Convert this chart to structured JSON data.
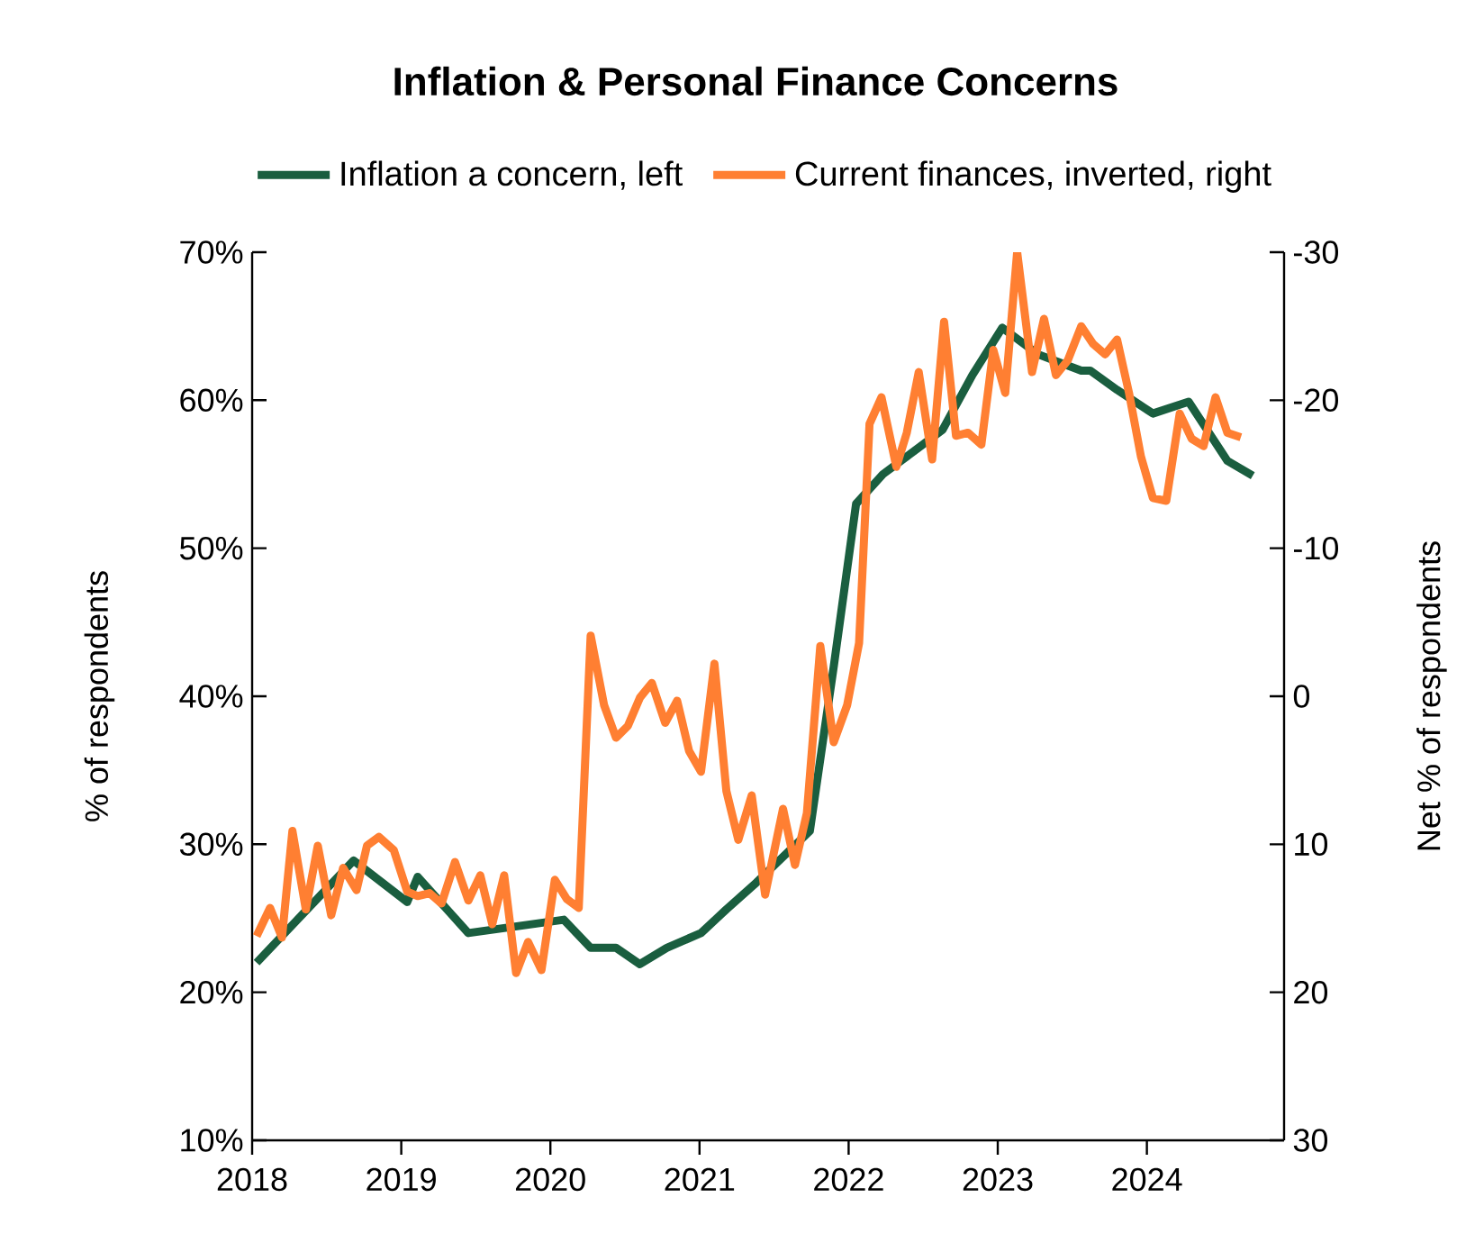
{
  "chart_data": {
    "type": "line",
    "title": "Inflation & Personal Finance Concerns",
    "ylabel": "% of respondents",
    "y2label": "Net % of respondents",
    "legend": "top",
    "xlim": [
      2018,
      2024.92
    ],
    "xticks": [
      2018,
      2019,
      2020,
      2021,
      2022,
      2023,
      2024
    ],
    "ylim": [
      10,
      70
    ],
    "yticks": [
      {
        "value": 10,
        "label": "10%"
      },
      {
        "value": 20,
        "label": "20%"
      },
      {
        "value": 30,
        "label": "30%"
      },
      {
        "value": 40,
        "label": "40%"
      },
      {
        "value": 50,
        "label": "50%"
      },
      {
        "value": 60,
        "label": "60%"
      },
      {
        "value": 70,
        "label": "70%"
      }
    ],
    "y2lim": [
      30,
      -30
    ],
    "y2ticks": [
      30,
      20,
      10,
      0,
      -10,
      -20,
      -30
    ],
    "series": [
      {
        "name": "Inflation a concern, left",
        "color": "#1a5e3f",
        "x": [
          2018.03,
          2018.68,
          2019.04,
          2019.11,
          2019.45,
          2020.09,
          2020.27,
          2020.44,
          2020.6,
          2020.78,
          2021.01,
          2021.18,
          2021.38,
          2021.74,
          2021.9,
          2022.05,
          2022.23,
          2022.39,
          2022.63,
          2022.83,
          2023.03,
          2023.27,
          2023.56,
          2023.62,
          2023.8,
          2024.04,
          2024.28,
          2024.54,
          2024.71
        ],
        "values": [
          22,
          28.9,
          26.1,
          27.8,
          24,
          24.9,
          23,
          23,
          21.9,
          23,
          24,
          25.6,
          27.4,
          30.9,
          42,
          53,
          55,
          56.2,
          58,
          61.7,
          64.9,
          63.1,
          62,
          62,
          60.7,
          59.1,
          59.9,
          55.9,
          54.9
        ]
      },
      {
        "name": "Current finances, inverted, right",
        "color": "#ff7f32",
        "axis": "y2",
        "x": [
          2018.03,
          2018.12,
          2018.2,
          2018.27,
          2018.36,
          2018.44,
          2018.53,
          2018.61,
          2018.7,
          2018.77,
          2018.85,
          2018.95,
          2019.04,
          2019.11,
          2019.19,
          2019.27,
          2019.36,
          2019.45,
          2019.53,
          2019.61,
          2019.69,
          2019.77,
          2019.85,
          2019.94,
          2020.03,
          2020.11,
          2020.19,
          2020.27,
          2020.36,
          2020.44,
          2020.52,
          2020.6,
          2020.68,
          2020.77,
          2020.85,
          2020.93,
          2021.01,
          2021.1,
          2021.18,
          2021.26,
          2021.35,
          2021.44,
          2021.56,
          2021.64,
          2021.72,
          2021.81,
          2021.9,
          2021.99,
          2022.07,
          2022.14,
          2022.22,
          2022.32,
          2022.39,
          2022.47,
          2022.56,
          2022.64,
          2022.72,
          2022.8,
          2022.89,
          2022.97,
          2023.05,
          2023.13,
          2023.23,
          2023.31,
          2023.39,
          2023.47,
          2023.56,
          2023.64,
          2023.72,
          2023.8,
          2023.88,
          2023.96,
          2024.04,
          2024.13,
          2024.22,
          2024.3,
          2024.38,
          2024.46,
          2024.54,
          2024.63
        ],
        "values": [
          16.2,
          14.3,
          16.3,
          9.1,
          14.4,
          10.1,
          14.8,
          11.6,
          13.1,
          10.1,
          9.5,
          10.4,
          13.2,
          13.5,
          13.3,
          14,
          11.2,
          13.8,
          12.1,
          15.4,
          12.1,
          18.7,
          16.6,
          18.5,
          12.4,
          13.7,
          14.3,
          -4.1,
          0.6,
          2.8,
          2,
          0.1,
          -0.9,
          1.8,
          0.3,
          3.7,
          5.1,
          -2.2,
          6.4,
          9.7,
          6.7,
          13.4,
          7.6,
          11.4,
          7.9,
          -3.4,
          3.1,
          0.6,
          -3.6,
          -18.4,
          -20.2,
          -15.5,
          -17.8,
          -21.9,
          -16,
          -25.3,
          -17.6,
          -17.8,
          -17,
          -23.4,
          -20.5,
          -30,
          -21.9,
          -25.5,
          -21.7,
          -22.7,
          -25,
          -23.8,
          -23.1,
          -24.1,
          -20.5,
          -16.2,
          -13.4,
          -13.2,
          -19.1,
          -17.4,
          -16.9,
          -20.2,
          -17.8,
          -17.5
        ]
      }
    ]
  }
}
